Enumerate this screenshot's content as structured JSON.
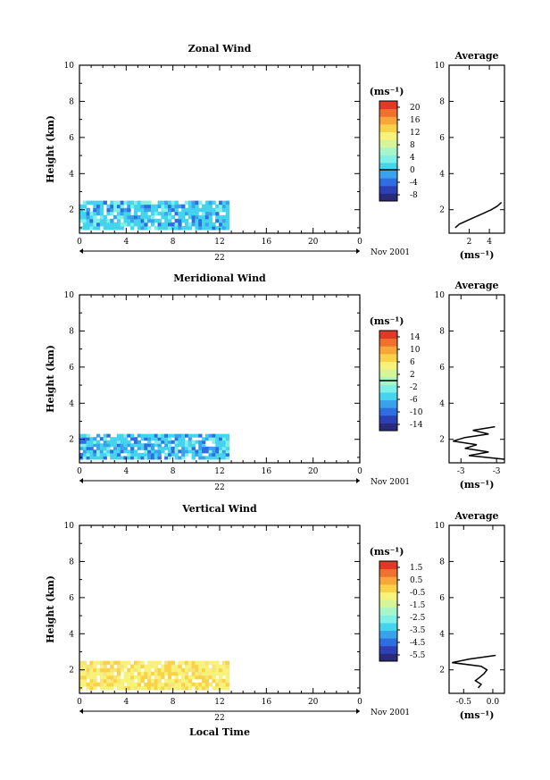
{
  "panels": [
    {
      "title": "Zonal Wind",
      "ylabel": "Height (km)",
      "units": "(ms⁻¹)",
      "colorbar_ticks": [
        "20",
        "16",
        "12",
        "8",
        "4",
        "0",
        "-4",
        "-8"
      ],
      "colorbar_range": [
        -10,
        22
      ],
      "zero_line_value": 0,
      "avg_title": "Average",
      "avg_xticks": [
        "2",
        "4"
      ],
      "avg_xunits": "(ms⁻¹)",
      "palette": "zonal"
    },
    {
      "title": "Meridional Wind",
      "ylabel": "Height (km)",
      "units": "(ms⁻¹)",
      "colorbar_ticks": [
        "14",
        "10",
        "6",
        "2",
        "-2",
        "-6",
        "-10",
        "-14"
      ],
      "colorbar_range": [
        -16,
        16
      ],
      "zero_line_value": 0,
      "avg_title": "Average",
      "avg_xticks": [
        "-3",
        "-3"
      ],
      "avg_xunits": "(ms⁻¹)",
      "palette": "meridional"
    },
    {
      "title": "Vertical Wind",
      "ylabel": "Height (km)",
      "units": "(ms⁻¹)",
      "colorbar_ticks": [
        "1.5",
        "0.5",
        "-0.5",
        "-1.5",
        "-2.5",
        "-3.5",
        "-4.5",
        "-5.5"
      ],
      "colorbar_range": [
        -6,
        2
      ],
      "zero_line_value": null,
      "avg_title": "Average",
      "avg_xticks": [
        "-0.5",
        "0.0"
      ],
      "avg_xunits": "(ms⁻¹)",
      "palette": "vertical"
    }
  ],
  "shared": {
    "yticks": [
      "2",
      "4",
      "6",
      "8",
      "10"
    ],
    "xticks": [
      "0",
      "4",
      "8",
      "12",
      "16",
      "20",
      "0"
    ],
    "day_label": "22",
    "month_label": "Nov 2001",
    "xlabel": "Local Time"
  },
  "chart_data": [
    {
      "type": "heatmap",
      "title": "Zonal Wind",
      "xlabel": "",
      "ylabel": "Height (km)",
      "xlim": [
        0,
        24
      ],
      "ylim": [
        0.7,
        10
      ],
      "data_extent": {
        "x": [
          0,
          12.8
        ],
        "y": [
          0.9,
          2.5
        ]
      },
      "value_range": [
        -10,
        22
      ],
      "typical_values": "mostly 2 to 6 ms-1 (cyan), pockets near -4 to -8 at the lowest gates",
      "average_profile": {
        "heights": [
          1.0,
          1.2,
          1.4,
          1.6,
          1.8,
          2.0,
          2.2,
          2.4
        ],
        "values": [
          0.6,
          1.0,
          1.8,
          2.6,
          3.4,
          4.2,
          4.8,
          5.2
        ],
        "xlim": [
          0,
          5.5
        ]
      }
    },
    {
      "type": "heatmap",
      "title": "Meridional Wind",
      "xlabel": "",
      "ylabel": "Height (km)",
      "xlim": [
        0,
        24
      ],
      "ylim": [
        0.7,
        10
      ],
      "data_extent": {
        "x": [
          0,
          12.8
        ],
        "y": [
          0.9,
          2.3
        ]
      },
      "value_range": [
        -16,
        16
      ],
      "typical_values": "mostly -2 to -6 ms-1 (cyan/light blue), some -10 values near the surface",
      "average_profile": {
        "heights": [
          0.9,
          1.1,
          1.3,
          1.5,
          1.7,
          1.9,
          2.1,
          2.3,
          2.5,
          2.7
        ],
        "values": [
          -1.0,
          -5.5,
          -3.0,
          -6.0,
          -4.5,
          -7.5,
          -6.0,
          -3.0,
          -5.0,
          -2.2
        ],
        "xlim": [
          -8,
          -1
        ]
      }
    },
    {
      "type": "heatmap",
      "title": "Vertical Wind",
      "xlabel": "Local Time",
      "ylabel": "Height (km)",
      "xlim": [
        0,
        24
      ],
      "ylim": [
        0.7,
        10
      ],
      "data_extent": {
        "x": [
          0,
          12.8
        ],
        "y": [
          0.9,
          2.5
        ]
      },
      "value_range": [
        -6,
        2
      ],
      "typical_values": "mostly 0.5 to 1.5 ms-1 (yellow/orange)",
      "average_profile": {
        "heights": [
          1.0,
          1.2,
          1.4,
          1.6,
          1.8,
          2.0,
          2.2,
          2.4,
          2.6,
          2.8
        ],
        "values": [
          -0.25,
          -0.2,
          -0.3,
          -0.22,
          -0.15,
          -0.1,
          -0.2,
          -0.7,
          -0.4,
          0.05
        ],
        "xlim": [
          -0.75,
          0.2
        ]
      }
    }
  ]
}
